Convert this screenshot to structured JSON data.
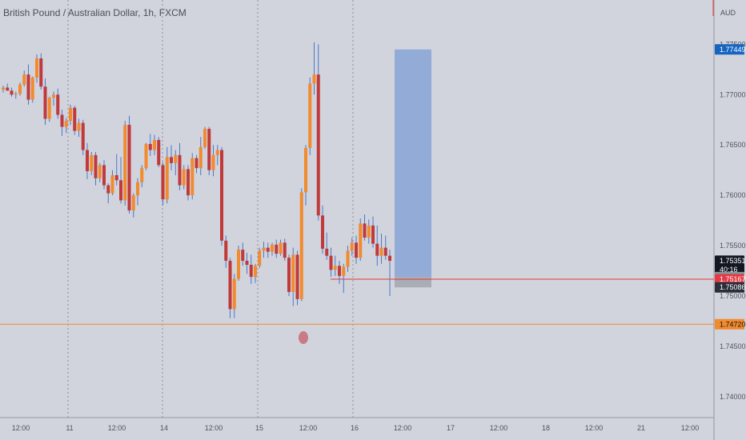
{
  "symbol": {
    "title": "British Pound / Australian Dollar, 1h, FXCM",
    "currency": "AUD"
  },
  "colors": {
    "background": "#d1d4dc",
    "bull": "#f28a2e",
    "bear": "#c0393b",
    "wick": "#4a78c8",
    "box_fill": "#8faad6",
    "red_line": "#e53935",
    "orange_line": "#f28a2e"
  },
  "chart_data": {
    "type": "candlestick",
    "y_range": [
      1.7357,
      1.7794
    ],
    "y_ticks": [
      "1.77500",
      "1.77000",
      "1.76500",
      "1.76000",
      "1.75500",
      "1.75000",
      "1.74500",
      "1.74000"
    ],
    "x_ticks": [
      "12:00",
      "11",
      "12:00",
      "14",
      "12:00",
      "15",
      "12:00",
      "16",
      "12:00",
      "17",
      "12:00",
      "18",
      "12:00",
      "21",
      "12:00"
    ],
    "price_badges": [
      {
        "label": "1.77449",
        "value": 1.77449,
        "bg": "#1565c0",
        "fg": "#ffffff"
      },
      {
        "label": "1.75351",
        "value": 1.75351,
        "bg": "#131722",
        "fg": "#ffffff",
        "sub": "40:16"
      },
      {
        "label": "1.75188",
        "value": 1.75188,
        "bg": "#7f9a9e",
        "fg": "#ffffff"
      },
      {
        "label": "1.75167",
        "value": 1.75167,
        "bg": "#e53945",
        "fg": "#ffffff"
      },
      {
        "label": "1.75086",
        "value": 1.75086,
        "bg": "#2a2e39",
        "fg": "#ffffff"
      },
      {
        "label": "1.74720",
        "value": 1.7472,
        "bg": "#f28a2e",
        "fg": "#131722"
      }
    ],
    "horizontal_lines": [
      {
        "name": "stop-level",
        "value": 1.75167,
        "color": "#e53935"
      },
      {
        "name": "support-level",
        "value": 1.7472,
        "color": "#f28a2e"
      }
    ],
    "position_box": {
      "top": 1.77449,
      "bottom": 1.75188,
      "stop": 1.75086
    },
    "candles": [
      [
        1.7705,
        1.7709,
        1.7702,
        1.7707
      ],
      [
        1.7707,
        1.7711,
        1.7704,
        1.7704
      ],
      [
        1.7704,
        1.7707,
        1.7698,
        1.77
      ],
      [
        1.77,
        1.7703,
        1.7696,
        1.7701
      ],
      [
        1.7701,
        1.7712,
        1.7699,
        1.771
      ],
      [
        1.771,
        1.7724,
        1.7708,
        1.772
      ],
      [
        1.772,
        1.773,
        1.769,
        1.7695
      ],
      [
        1.7695,
        1.7718,
        1.7692,
        1.7717
      ],
      [
        1.7717,
        1.774,
        1.7712,
        1.7736
      ],
      [
        1.7736,
        1.7741,
        1.7705,
        1.7708
      ],
      [
        1.7708,
        1.7716,
        1.767,
        1.7676
      ],
      [
        1.7676,
        1.7698,
        1.7673,
        1.7697
      ],
      [
        1.7697,
        1.7703,
        1.7689,
        1.77
      ],
      [
        1.77,
        1.7706,
        1.7676,
        1.768
      ],
      [
        1.768,
        1.7685,
        1.7659,
        1.7668
      ],
      [
        1.7668,
        1.7677,
        1.7662,
        1.7674
      ],
      [
        1.7674,
        1.769,
        1.767,
        1.7687
      ],
      [
        1.7687,
        1.7689,
        1.766,
        1.7664
      ],
      [
        1.7664,
        1.7676,
        1.7658,
        1.7672
      ],
      [
        1.7672,
        1.7675,
        1.764,
        1.7645
      ],
      [
        1.7645,
        1.7652,
        1.7616,
        1.7624
      ],
      [
        1.7624,
        1.7643,
        1.762,
        1.764
      ],
      [
        1.764,
        1.7643,
        1.761,
        1.7617
      ],
      [
        1.7617,
        1.7632,
        1.7613,
        1.763
      ],
      [
        1.763,
        1.7635,
        1.7606,
        1.761
      ],
      [
        1.761,
        1.7612,
        1.7592,
        1.7602
      ],
      [
        1.7602,
        1.7625,
        1.76,
        1.762
      ],
      [
        1.762,
        1.7641,
        1.761,
        1.7615
      ],
      [
        1.7615,
        1.7638,
        1.7592,
        1.7595
      ],
      [
        1.7595,
        1.7674,
        1.759,
        1.767
      ],
      [
        1.767,
        1.7679,
        1.7582,
        1.7585
      ],
      [
        1.7585,
        1.7602,
        1.7578,
        1.76
      ],
      [
        1.76,
        1.7617,
        1.759,
        1.7613
      ],
      [
        1.7613,
        1.763,
        1.7608,
        1.7627
      ],
      [
        1.7627,
        1.7652,
        1.7625,
        1.7651
      ],
      [
        1.7651,
        1.7661,
        1.7639,
        1.7645
      ],
      [
        1.7645,
        1.766,
        1.764,
        1.7655
      ],
      [
        1.7655,
        1.7658,
        1.7628,
        1.763
      ],
      [
        1.763,
        1.7633,
        1.759,
        1.7596
      ],
      [
        1.7596,
        1.7648,
        1.7592,
        1.7638
      ],
      [
        1.7638,
        1.765,
        1.7625,
        1.7632
      ],
      [
        1.7632,
        1.7645,
        1.762,
        1.764
      ],
      [
        1.764,
        1.7652,
        1.7605,
        1.761
      ],
      [
        1.761,
        1.763,
        1.7606,
        1.7626
      ],
      [
        1.7626,
        1.763,
        1.7595,
        1.76
      ],
      [
        1.76,
        1.7642,
        1.7596,
        1.7637
      ],
      [
        1.7637,
        1.764,
        1.7622,
        1.7627
      ],
      [
        1.7627,
        1.7658,
        1.762,
        1.7648
      ],
      [
        1.7648,
        1.7668,
        1.7646,
        1.7666
      ],
      [
        1.7666,
        1.7668,
        1.762,
        1.7625
      ],
      [
        1.7625,
        1.765,
        1.7619,
        1.764
      ],
      [
        1.764,
        1.765,
        1.763,
        1.7645
      ],
      [
        1.7645,
        1.7648,
        1.755,
        1.7555
      ],
      [
        1.7555,
        1.756,
        1.7528,
        1.7535
      ],
      [
        1.7535,
        1.7538,
        1.7478,
        1.7487
      ],
      [
        1.7487,
        1.7522,
        1.7478,
        1.7517
      ],
      [
        1.7517,
        1.755,
        1.7515,
        1.7546
      ],
      [
        1.7546,
        1.7553,
        1.753,
        1.7535
      ],
      [
        1.7535,
        1.7543,
        1.7522,
        1.7531
      ],
      [
        1.7531,
        1.7541,
        1.7512,
        1.7519
      ],
      [
        1.7519,
        1.7532,
        1.7513,
        1.753
      ],
      [
        1.753,
        1.7548,
        1.7528,
        1.7545
      ],
      [
        1.7545,
        1.7554,
        1.7538,
        1.7548
      ],
      [
        1.7548,
        1.7553,
        1.7538,
        1.7544
      ],
      [
        1.7544,
        1.7553,
        1.754,
        1.7551
      ],
      [
        1.7551,
        1.7556,
        1.7538,
        1.7542
      ],
      [
        1.7542,
        1.7556,
        1.754,
        1.7553
      ],
      [
        1.7553,
        1.7557,
        1.7535,
        1.7538
      ],
      [
        1.7538,
        1.7541,
        1.75,
        1.7504
      ],
      [
        1.7504,
        1.7548,
        1.749,
        1.7541
      ],
      [
        1.7541,
        1.7545,
        1.7491,
        1.7497
      ],
      [
        1.7497,
        1.7607,
        1.7495,
        1.7603
      ],
      [
        1.7603,
        1.765,
        1.759,
        1.7647
      ],
      [
        1.7647,
        1.7717,
        1.764,
        1.7711
      ],
      [
        1.7711,
        1.7752,
        1.77,
        1.772
      ],
      [
        1.772,
        1.775,
        1.7575,
        1.758
      ],
      [
        1.758,
        1.759,
        1.7542,
        1.7547
      ],
      [
        1.7547,
        1.7563,
        1.7536,
        1.754
      ],
      [
        1.754,
        1.7548,
        1.7519,
        1.7526
      ],
      [
        1.7526,
        1.754,
        1.752,
        1.753
      ],
      [
        1.753,
        1.7535,
        1.7512,
        1.752
      ],
      [
        1.752,
        1.7532,
        1.7503,
        1.7529
      ],
      [
        1.7529,
        1.755,
        1.7524,
        1.7545
      ],
      [
        1.7545,
        1.7558,
        1.754,
        1.7553
      ],
      [
        1.7553,
        1.756,
        1.7532,
        1.7538
      ],
      [
        1.7538,
        1.7577,
        1.7535,
        1.7572
      ],
      [
        1.7572,
        1.7581,
        1.7555,
        1.7558
      ],
      [
        1.7558,
        1.7576,
        1.7552,
        1.757
      ],
      [
        1.757,
        1.7579,
        1.7548,
        1.7552
      ],
      [
        1.7552,
        1.757,
        1.753,
        1.754
      ],
      [
        1.754,
        1.7562,
        1.7532,
        1.7548
      ],
      [
        1.7548,
        1.756,
        1.7536,
        1.754
      ],
      [
        1.754,
        1.7546,
        1.75,
        1.7535
      ]
    ]
  }
}
